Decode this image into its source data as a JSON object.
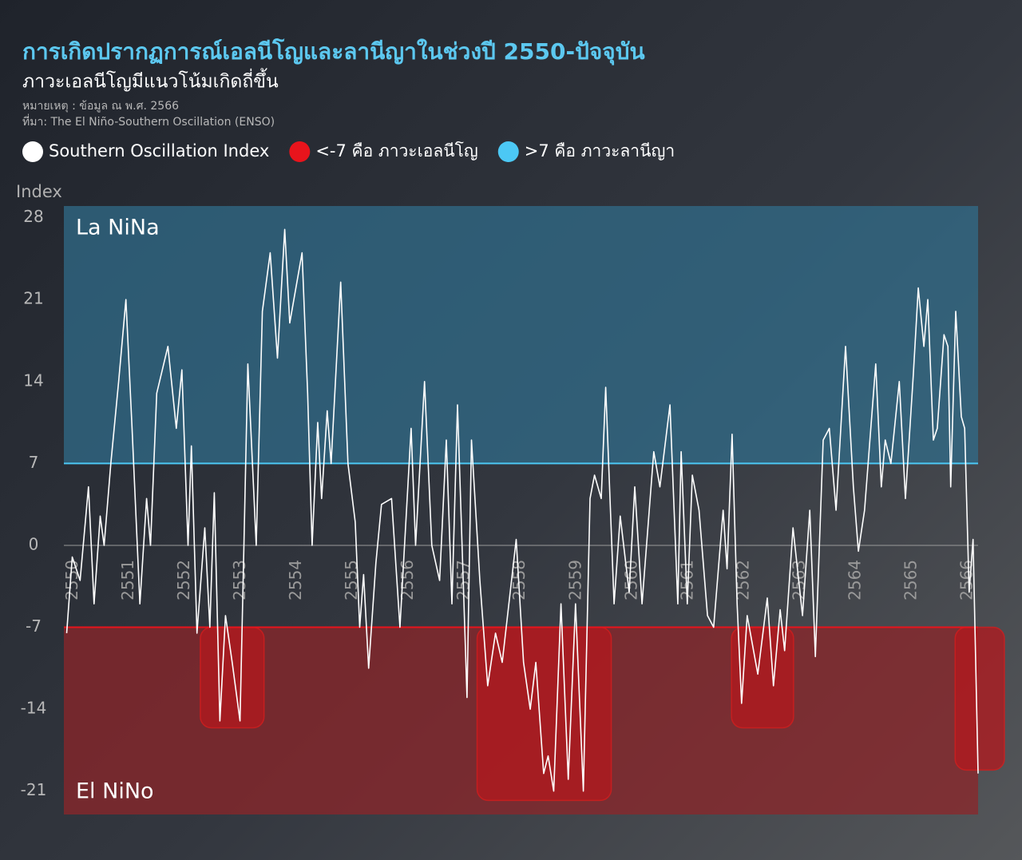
{
  "chart_data": {
    "type": "line",
    "title": "การเกิดปรากฏการณ์เอลนีโญและลานีญาในช่วงปี 2550-ปัจจุบัน",
    "subtitle": "ภาวะเอลนีโญมีแนวโน้มเกิดถี่ขึ้น",
    "notes": [
      "หมายเหตุ : ข้อมูล ณ พ.ศ. 2566",
      "ที่มา: The El Niño-Southern Oscillation (ENSO)"
    ],
    "ylabel": "Index",
    "xlim": [
      2549.95,
      2566.3
    ],
    "xticks": [
      2550,
      2551,
      2552,
      2553,
      2554,
      2555,
      2556,
      2557,
      2558,
      2559,
      2560,
      2561,
      2562,
      2563,
      2564,
      2565,
      2566
    ],
    "ylim": [
      -23,
      29
    ],
    "yticks": [
      -21,
      -14,
      -7,
      0,
      7,
      14,
      21,
      28
    ],
    "series": [
      {
        "name": "Southern Oscillation Index",
        "color": "#ffffff",
        "x": [
          2550.0,
          2550.1,
          2550.24,
          2550.39,
          2550.49,
          2550.6,
          2550.67,
          2550.79,
          2550.93,
          2551.06,
          2551.17,
          2551.31,
          2551.43,
          2551.5,
          2551.61,
          2551.81,
          2551.96,
          2552.06,
          2552.17,
          2552.23,
          2552.33,
          2552.47,
          2552.56,
          2552.64,
          2552.74,
          2552.84,
          2552.96,
          2553.1,
          2553.17,
          2553.24,
          2553.39,
          2553.5,
          2553.64,
          2553.77,
          2553.9,
          2553.99,
          2554.21,
          2554.31,
          2554.39,
          2554.49,
          2554.56,
          2554.66,
          2554.73,
          2554.9,
          2555.03,
          2555.16,
          2555.24,
          2555.31,
          2555.4,
          2555.53,
          2555.63,
          2555.81,
          2555.96,
          2556.16,
          2556.24,
          2556.4,
          2556.53,
          2556.67,
          2556.79,
          2556.89,
          2556.99,
          2557.16,
          2557.24,
          2557.39,
          2557.53,
          2557.67,
          2557.79,
          2558.04,
          2558.17,
          2558.29,
          2558.39,
          2558.53,
          2558.61,
          2558.71,
          2558.84,
          2558.97,
          2559.1,
          2559.24,
          2559.36,
          2559.44,
          2559.56,
          2559.64,
          2559.79,
          2559.9,
          2560.06,
          2560.16,
          2560.29,
          2560.5,
          2560.61,
          2560.79,
          2560.93,
          2560.99,
          2561.1,
          2561.19,
          2561.31,
          2561.46,
          2561.57,
          2561.74,
          2561.81,
          2561.9,
          2561.99,
          2562.07,
          2562.17,
          2562.36,
          2562.53,
          2562.64,
          2562.76,
          2562.84,
          2562.99,
          2563.16,
          2563.29,
          2563.39,
          2563.53,
          2563.64,
          2563.76,
          2563.93,
          2564.07,
          2564.16,
          2564.27,
          2564.47,
          2564.57,
          2564.64,
          2564.74,
          2564.89,
          2565.0,
          2565.14,
          2565.23,
          2565.33,
          2565.4,
          2565.5,
          2565.57,
          2565.69,
          2565.76,
          2565.81,
          2565.9,
          2566.0,
          2566.06,
          2566.14,
          2566.21,
          2566.3
        ],
        "values": [
          -7.5,
          -1,
          -3,
          5,
          -5,
          2.5,
          0,
          7,
          14,
          21,
          10,
          -5,
          4,
          0,
          13,
          17,
          10,
          15,
          0,
          8.5,
          -7.5,
          1.5,
          -7,
          4.5,
          -15,
          -6,
          -10,
          -15,
          0,
          15.5,
          0,
          20,
          25,
          16,
          27,
          19,
          25,
          13,
          0,
          10.5,
          4,
          11.5,
          7,
          22.5,
          7,
          2,
          -7,
          -2.5,
          -10.5,
          -1.5,
          3.5,
          4,
          -7,
          10,
          0,
          14,
          0,
          -3,
          9,
          -5,
          12,
          -13,
          9,
          -3,
          -12,
          -7.5,
          -10,
          0.5,
          -10,
          -14,
          -10,
          -19.5,
          -18,
          -21,
          -5,
          -20,
          -5,
          -21,
          4,
          6,
          4,
          13.5,
          -5,
          2.5,
          -4,
          5,
          -5,
          8,
          5,
          12,
          -5,
          8,
          -5,
          6,
          3,
          -6,
          -7,
          3,
          -2,
          9.5,
          -5,
          -13.5,
          -6,
          -11,
          -4.5,
          -12,
          -5.5,
          -9,
          1.5,
          -6,
          3,
          -9.5,
          9,
          10,
          3,
          17,
          5,
          -0.5,
          3,
          15.5,
          5,
          9,
          7,
          14,
          4,
          14.5,
          22,
          17,
          21,
          9,
          10,
          18,
          17,
          5,
          20,
          11,
          10,
          -4,
          0.5,
          -19.5
        ]
      }
    ],
    "thresholds": [
      {
        "name": "<-7 คือ ภาวะเอลนีโญ",
        "color": "#e8141c",
        "value": -7,
        "side": "below",
        "region_label": "El NiNo",
        "region_color": "rgba(140,38,42,0.75)"
      },
      {
        "name": ">7 คือ ภาวะลานีญา",
        "color": "#4cc8f4",
        "value": 7,
        "side": "above",
        "region_label": "La NiNa",
        "region_color": "rgba(48,110,140,0.72)"
      }
    ],
    "el_nino_periods": [
      {
        "x": [
          2552.39,
          2553.53
        ],
        "min": -15.6
      },
      {
        "x": [
          2557.34,
          2559.74
        ],
        "min": -21.8
      },
      {
        "x": [
          2561.89,
          2563.0
        ],
        "min": -15.6
      },
      {
        "x": [
          2565.89,
          2566.77
        ],
        "min": -19.2
      }
    ]
  }
}
